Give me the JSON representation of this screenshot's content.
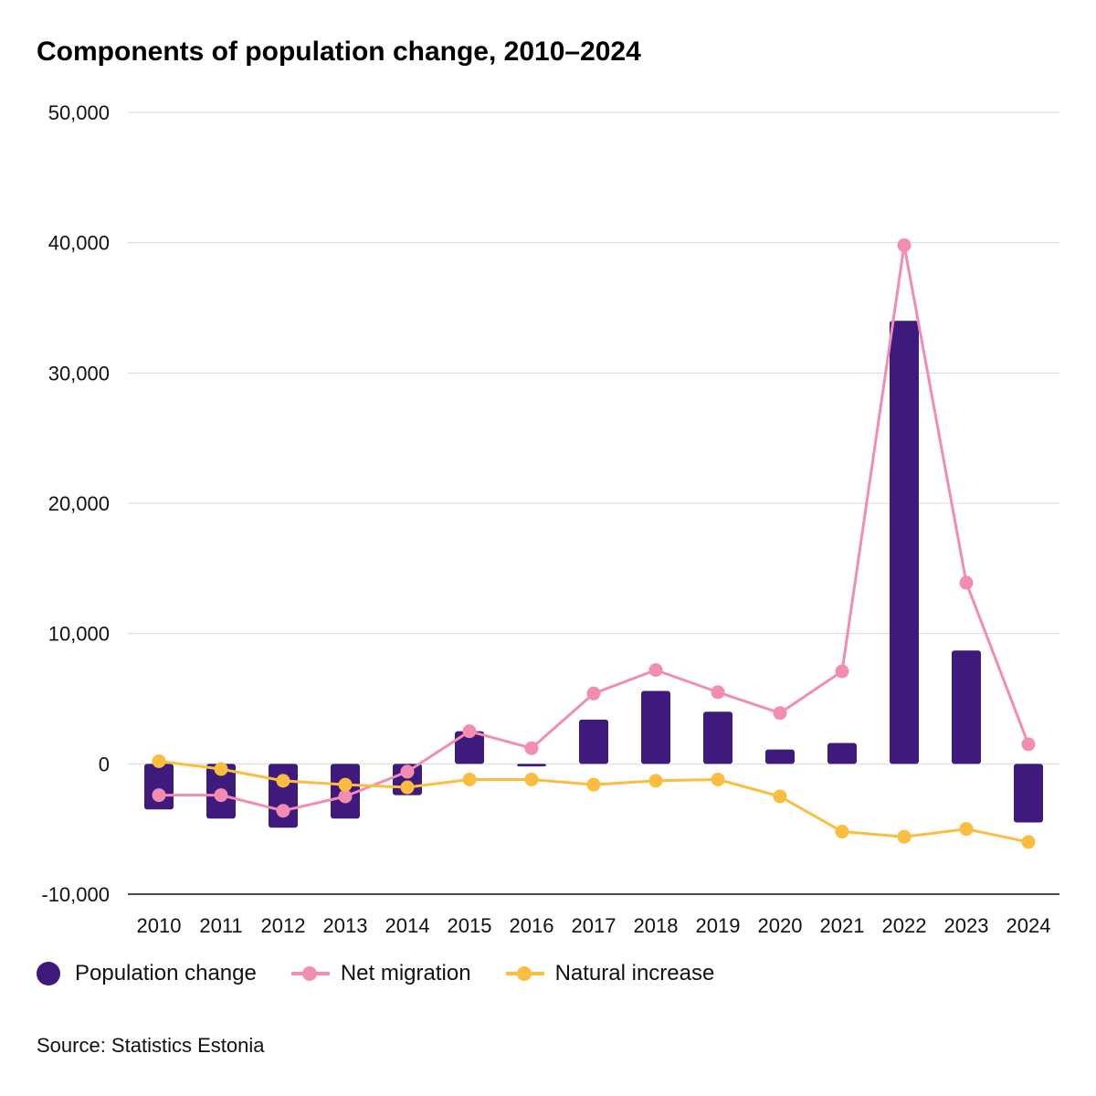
{
  "chart_data": {
    "type": "bar",
    "title": "Components of population change, 2010–2024",
    "categories": [
      "2010",
      "2011",
      "2012",
      "2013",
      "2014",
      "2015",
      "2016",
      "2017",
      "2018",
      "2019",
      "2020",
      "2021",
      "2022",
      "2023",
      "2024"
    ],
    "series": [
      {
        "name": "Population change",
        "type": "bar",
        "color": "#3f1a7d",
        "values": [
          -3500,
          -4200,
          -4900,
          -4200,
          -2400,
          2500,
          -200,
          3400,
          5600,
          4000,
          1100,
          1600,
          34000,
          8700,
          -4500
        ]
      },
      {
        "name": "Net migration",
        "type": "line",
        "color": "#f28db1",
        "values": [
          -2400,
          -2400,
          -3600,
          -2500,
          -600,
          2500,
          1200,
          5400,
          7200,
          5500,
          3900,
          7100,
          39800,
          13900,
          1500
        ]
      },
      {
        "name": "Natural increase",
        "type": "line",
        "color": "#fbbd40",
        "values": [
          200,
          -400,
          -1300,
          -1600,
          -1800,
          -1200,
          -1200,
          -1600,
          -1300,
          -1200,
          -2500,
          -5200,
          -5600,
          -5000,
          -6000
        ]
      }
    ],
    "ylim": [
      -10000,
      50000
    ],
    "yticks": [
      -10000,
      0,
      10000,
      20000,
      30000,
      40000,
      50000
    ],
    "ytick_labels": [
      "-10,000",
      "0",
      "10,000",
      "20,000",
      "30,000",
      "40,000",
      "50,000"
    ],
    "xlabel": "",
    "ylabel": "",
    "grid": true,
    "legend_position": "bottom-left"
  },
  "source": "Source: Statistics Estonia"
}
